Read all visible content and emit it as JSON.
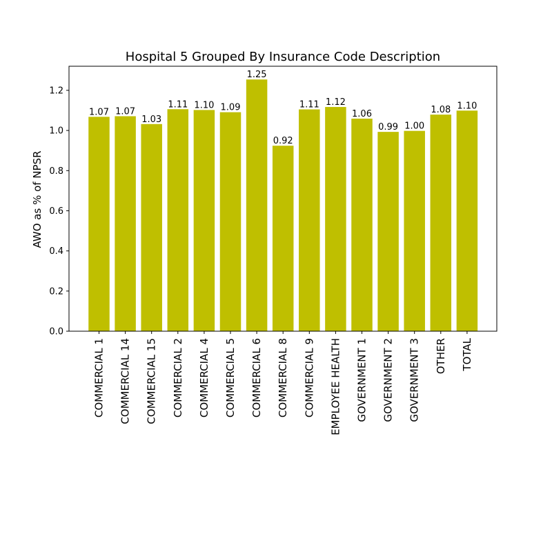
{
  "chart_data": {
    "type": "bar",
    "title": "Hospital 5 Grouped By Insurance Code Description",
    "xlabel": "",
    "ylabel": "AWO as % of NPSR",
    "ylim": [
      0,
      1.32
    ],
    "yticks": [
      0.0,
      0.2,
      0.4,
      0.6,
      0.8,
      1.0,
      1.2
    ],
    "ytick_labels": [
      "0.0",
      "0.2",
      "0.4",
      "0.6",
      "0.8",
      "1.0",
      "1.2"
    ],
    "grid": false,
    "bar_color": "#bfbf00",
    "categories": [
      "COMMERCIAL 1",
      "COMMERCIAL 14",
      "COMMERCIAL 15",
      "COMMERCIAL 2",
      "COMMERCIAL 4",
      "COMMERCIAL 5",
      "COMMERCIAL 6",
      "COMMERCIAL 8",
      "COMMERCIAL 9",
      "EMPLOYEE HEALTH",
      "GOVERNMENT 1",
      "GOVERNMENT 2",
      "GOVERNMENT 3",
      "OTHER",
      "TOTAL"
    ],
    "values": [
      1.068,
      1.071,
      1.032,
      1.106,
      1.102,
      1.091,
      1.254,
      0.924,
      1.105,
      1.117,
      1.059,
      0.993,
      0.998,
      1.079,
      1.099
    ],
    "data_labels": [
      "1.07",
      "1.07",
      "1.03",
      "1.11",
      "1.10",
      "1.09",
      "1.25",
      "0.92",
      "1.11",
      "1.12",
      "1.06",
      "0.99",
      "1.00",
      "1.08",
      "1.10"
    ]
  }
}
